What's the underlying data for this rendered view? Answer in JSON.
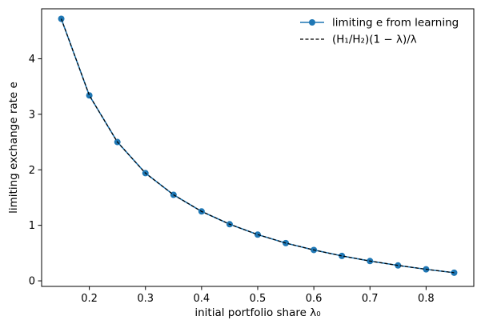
{
  "chart_data": {
    "type": "line",
    "title": "",
    "xlabel": "initial portfolio share λ₀",
    "ylabel": "limiting exchange rate e",
    "xlim": [
      0.115,
      0.885
    ],
    "ylim": [
      -0.1,
      4.9
    ],
    "xticks": [
      0.2,
      0.3,
      0.4,
      0.5,
      0.6,
      0.7,
      0.8
    ],
    "yticks": [
      0,
      1,
      2,
      3,
      4
    ],
    "xtick_labels": [
      "0.2",
      "0.3",
      "0.4",
      "0.5",
      "0.6",
      "0.7",
      "0.8"
    ],
    "ytick_labels": [
      "0",
      "1",
      "2",
      "3",
      "4"
    ],
    "grid": false,
    "legend_position": "top-right",
    "x": [
      0.15,
      0.2,
      0.25,
      0.3,
      0.35,
      0.4,
      0.45,
      0.5,
      0.55,
      0.6,
      0.65,
      0.7,
      0.75,
      0.8,
      0.85
    ],
    "series": [
      {
        "name": "limiting e from learning",
        "style": "solid-with-circle-markers",
        "color": "#1f77b4",
        "values": [
          4.72,
          3.34,
          2.5,
          1.94,
          1.55,
          1.25,
          1.02,
          0.833,
          0.68,
          0.556,
          0.449,
          0.357,
          0.278,
          0.208,
          0.147
        ]
      },
      {
        "name": "(H₁/H₂)(1 − λ)/λ",
        "style": "dashed",
        "color": "#000000",
        "values": [
          4.72,
          3.34,
          2.5,
          1.94,
          1.55,
          1.25,
          1.02,
          0.833,
          0.68,
          0.556,
          0.449,
          0.357,
          0.278,
          0.208,
          0.147
        ]
      }
    ]
  }
}
